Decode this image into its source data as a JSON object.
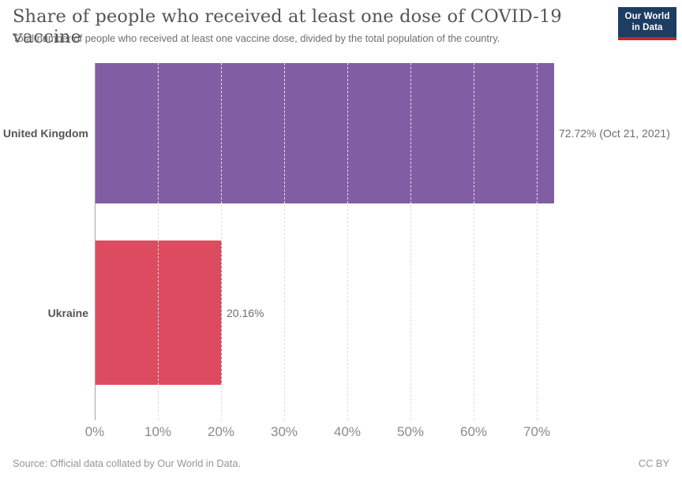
{
  "header": {
    "title": "Share of people who received at least one dose of COVID-19 vaccine",
    "subtitle": "Total number of people who received at least one vaccine dose, divided by the total population of the country.",
    "logo": {
      "line1": "Our World",
      "line2": "in Data",
      "bg_color": "#1d3d63",
      "strip_color": "#cf2128"
    }
  },
  "chart_data": {
    "type": "bar",
    "orientation": "horizontal",
    "title": "Share of people who received at least one dose of COVID-19 vaccine",
    "categories": [
      "United Kingdom",
      "Ukraine"
    ],
    "values": [
      72.72,
      20.16
    ],
    "value_labels": [
      "72.72% (Oct 21, 2021)",
      "20.16%"
    ],
    "bar_colors": [
      "#815ea4",
      "#dc4b60"
    ],
    "x_ticks": [
      "0%",
      "10%",
      "20%",
      "30%",
      "40%",
      "50%",
      "60%",
      "70%"
    ],
    "x_tick_values": [
      0,
      10,
      20,
      30,
      40,
      50,
      60,
      70
    ],
    "xlim": [
      0,
      92
    ],
    "xlabel": "",
    "ylabel": "",
    "grid": "vertical-dashed",
    "legend": "none"
  },
  "footer": {
    "source": "Source: Official data collated by Our World in Data.",
    "license": "CC BY"
  }
}
